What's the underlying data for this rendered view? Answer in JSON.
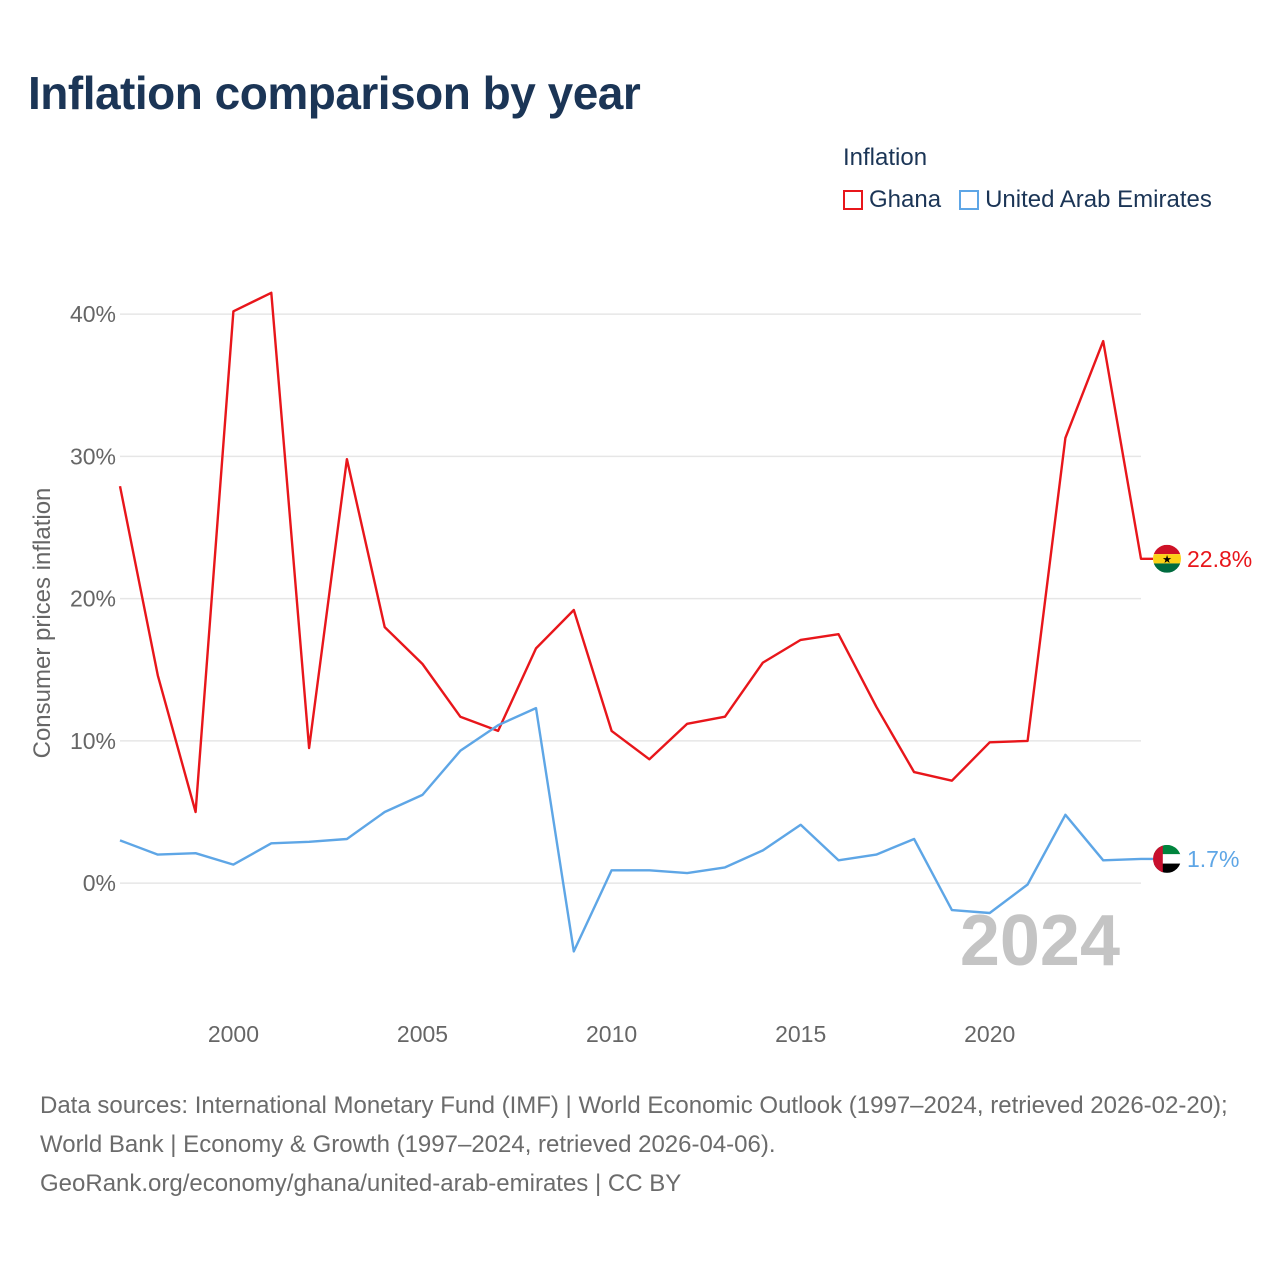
{
  "title": "Inflation comparison by year",
  "legend": {
    "title": "Inflation",
    "items": [
      {
        "label": "Ghana",
        "color": "#e8161b"
      },
      {
        "label": "United Arab Emirates",
        "color": "#5ea6e6"
      }
    ]
  },
  "chart_data": {
    "type": "line",
    "title": "Inflation comparison by year",
    "xlabel": "",
    "ylabel": "Consumer prices inflation",
    "x": [
      1997,
      1998,
      1999,
      2000,
      2001,
      2002,
      2003,
      2004,
      2005,
      2006,
      2007,
      2008,
      2009,
      2010,
      2011,
      2012,
      2013,
      2014,
      2015,
      2016,
      2017,
      2018,
      2019,
      2020,
      2021,
      2022,
      2023,
      2024
    ],
    "xlim": [
      1997,
      2024
    ],
    "ylim": [
      -8.5,
      45
    ],
    "x_ticks": [
      2000,
      2005,
      2010,
      2015,
      2020
    ],
    "y_ticks": [
      0,
      10,
      20,
      30,
      40
    ],
    "y_tick_labels": [
      "0%",
      "10%",
      "20%",
      "30%",
      "40%"
    ],
    "x_tick_labels": [
      "2000",
      "2005",
      "2010",
      "2015",
      "2020"
    ],
    "grid": true,
    "series": [
      {
        "name": "Ghana",
        "color": "#e8161b",
        "values": [
          27.9,
          14.6,
          5.0,
          40.2,
          41.5,
          9.5,
          29.8,
          18.0,
          15.4,
          11.7,
          10.7,
          16.5,
          19.2,
          10.7,
          8.7,
          11.2,
          11.7,
          15.5,
          17.1,
          17.5,
          12.4,
          7.8,
          7.2,
          9.9,
          10.0,
          31.3,
          38.1,
          22.8
        ],
        "end_label": "22.8%"
      },
      {
        "name": "United Arab Emirates",
        "color": "#5ea6e6",
        "values": [
          3.0,
          2.0,
          2.1,
          1.3,
          2.8,
          2.9,
          3.1,
          5.0,
          6.2,
          9.3,
          11.1,
          12.3,
          -4.8,
          0.9,
          0.9,
          0.7,
          1.1,
          2.3,
          4.1,
          1.6,
          2.0,
          3.1,
          -1.9,
          -2.1,
          -0.1,
          4.8,
          1.6,
          1.7
        ],
        "end_label": "1.7%"
      }
    ],
    "year_watermark": "2024"
  },
  "footer": {
    "line1": "Data sources: International Monetary Fund (IMF) | World Economic Outlook (1997–2024, retrieved 2026-02-20); World Bank | Economy & Growth (1997–2024, retrieved 2026-04-06).",
    "line2": "GeoRank.org/economy/ghana/united-arab-emirates | CC BY"
  }
}
